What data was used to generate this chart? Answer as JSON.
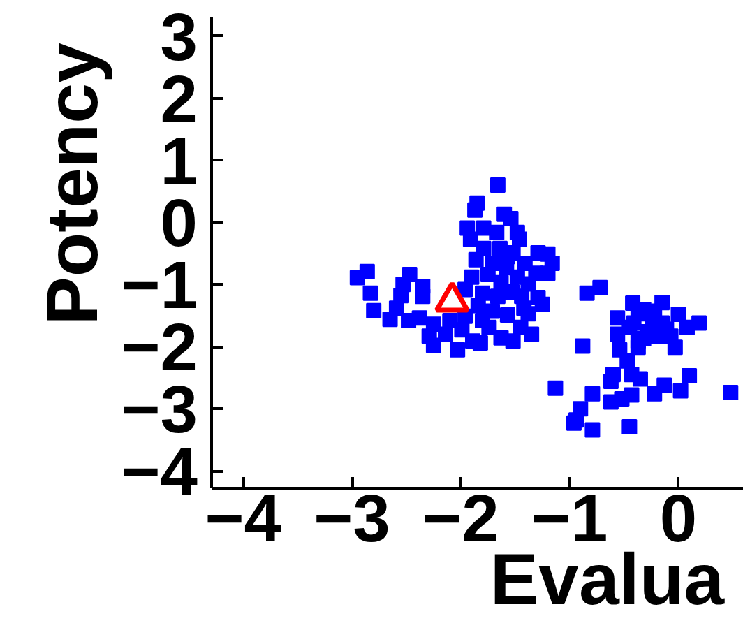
{
  "chart_data": {
    "type": "scatter",
    "xlabel": "Evalua",
    "ylabel": "Potency",
    "marker": "square",
    "xlim": [
      -4.29,
      0.6
    ],
    "ylim": [
      -4.28,
      3.3
    ],
    "xticks": [
      {
        "value": -4,
        "label": "−4"
      },
      {
        "value": -3,
        "label": "−3"
      },
      {
        "value": -2,
        "label": "−2"
      },
      {
        "value": -1,
        "label": "−1"
      },
      0
    ],
    "yticks": [
      {
        "value": -4,
        "label": "−4"
      },
      {
        "value": -3,
        "label": "−3"
      },
      {
        "value": -2,
        "label": "−2"
      },
      {
        "value": -1,
        "label": "−1"
      },
      0,
      1,
      2,
      3
    ],
    "series": [
      {
        "color": "#0000ff",
        "x": [
          -2.95,
          -2.86,
          -2.83,
          -2.8,
          -2.65,
          -2.47,
          -2.53,
          -2.55,
          -2.35,
          -2.35,
          -2.59,
          -2.48,
          -2.38,
          -1.66,
          -1.85,
          -1.87,
          -1.6,
          -1.54,
          -1.94,
          -1.79,
          -1.67,
          -1.48,
          -1.46,
          -1.91,
          -1.79,
          -1.64,
          -1.52,
          -1.29,
          -1.16,
          -1.2,
          -1.86,
          -1.71,
          -1.58,
          -1.41,
          -1.31,
          -1.75,
          -1.48,
          -1.63,
          -1.38,
          -1.9,
          -1.96,
          -1.8,
          -1.66,
          -1.53,
          -1.44,
          -1.29,
          -1.84,
          -1.71,
          -1.57,
          -1.42,
          -1.38,
          -1.96,
          -2.1,
          -2.25,
          -2.29,
          -2.25,
          -2.14,
          -2.03,
          -1.99,
          -1.89,
          -1.82,
          -1.74,
          -1.63,
          -1.52,
          -1.45,
          -1.35,
          -1.8,
          -1.25,
          -1.2,
          -1.57,
          -0.84,
          -0.72,
          -0.42,
          -0.15,
          -0.56,
          -0.32,
          -0.22,
          0.0,
          0.19,
          0.08,
          -0.28,
          -0.41,
          -0.15,
          -0.07,
          -0.56,
          -0.03,
          -0.54,
          -0.37,
          -0.47,
          -0.88,
          -0.6,
          -0.62,
          -0.43,
          -0.35,
          0.1,
          -0.13,
          0.02,
          -1.13,
          -0.79,
          -0.62,
          -0.52,
          -0.43,
          -0.22,
          -0.9,
          -0.94,
          -0.96,
          -0.79,
          -0.45,
          0.48,
          -0.37,
          -0.24,
          -0.2,
          -0.37,
          -0.45,
          -0.11,
          -0.32
        ],
        "values": [
          -0.89,
          -0.79,
          -1.14,
          -1.42,
          -1.56,
          -0.84,
          -1.0,
          -1.18,
          -1.03,
          -1.19,
          -1.38,
          -1.58,
          -1.54,
          0.6,
          0.31,
          0.2,
          0.13,
          0.06,
          -0.09,
          -0.09,
          -0.16,
          -0.16,
          -0.27,
          -0.27,
          -0.42,
          -0.42,
          -0.49,
          -0.49,
          -0.66,
          -0.82,
          -0.6,
          -0.66,
          -0.73,
          -0.66,
          -0.82,
          -0.84,
          -0.88,
          -0.97,
          -0.99,
          -0.88,
          -1.08,
          -1.14,
          -1.19,
          -1.12,
          -1.19,
          -1.21,
          -1.34,
          -1.43,
          -1.49,
          -1.38,
          -1.47,
          -1.51,
          -1.58,
          -1.64,
          -1.83,
          -1.98,
          -1.8,
          -2.05,
          -1.73,
          -1.91,
          -1.94,
          -1.69,
          -1.86,
          -1.91,
          -1.69,
          -1.8,
          -1.58,
          -1.32,
          -0.51,
          -0.55,
          -1.14,
          -1.05,
          -1.3,
          -1.29,
          -1.54,
          -1.4,
          -1.43,
          -1.48,
          -1.62,
          -1.69,
          -1.76,
          -1.62,
          -1.62,
          -1.83,
          -1.8,
          -2.01,
          -2.05,
          -2.01,
          -2.23,
          -1.99,
          -2.45,
          -2.56,
          -2.45,
          -2.52,
          -2.47,
          -2.62,
          -2.71,
          -2.67,
          -2.76,
          -2.89,
          -2.84,
          -2.78,
          -2.76,
          -3.0,
          -3.18,
          -3.23,
          -3.34,
          -3.29,
          -2.74,
          -1.47,
          -1.62,
          -1.83,
          -1.91,
          -1.69,
          -1.72,
          -1.87
        ]
      },
      {
        "color": "#ff0000",
        "marker": "triangle",
        "x": [
          -2.08
        ],
        "values": [
          -1.27
        ]
      }
    ]
  }
}
